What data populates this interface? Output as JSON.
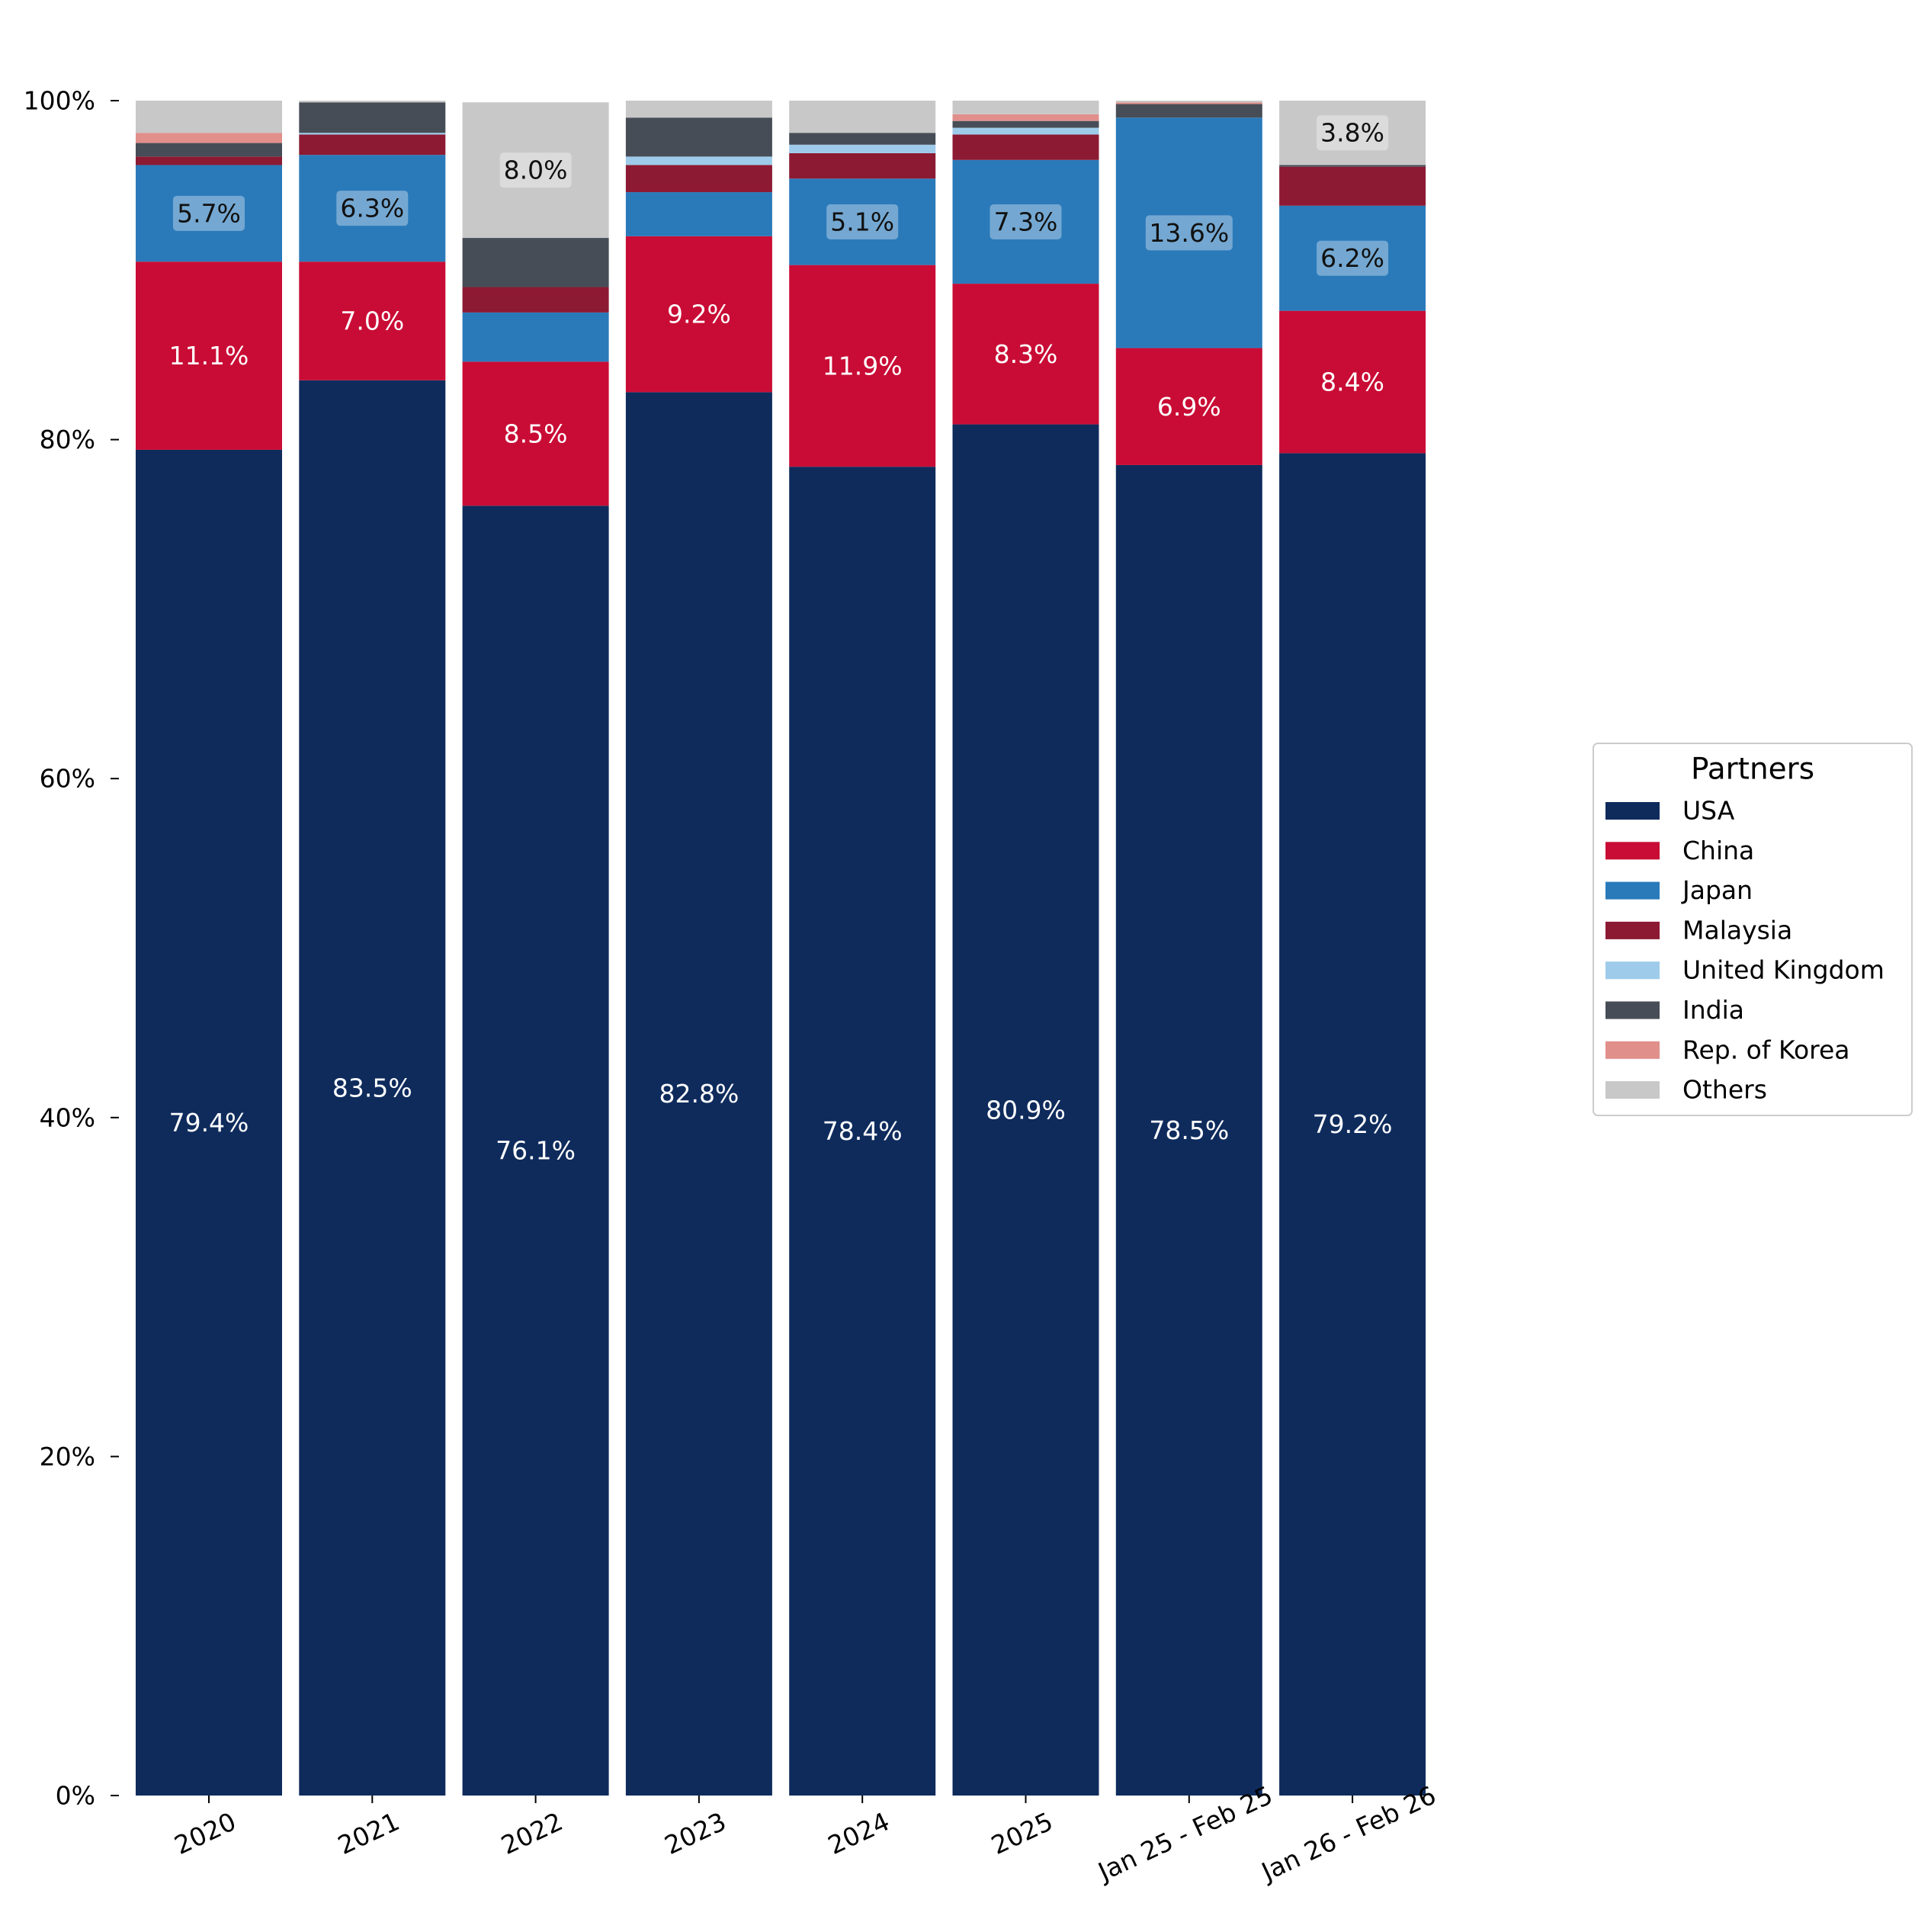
{
  "chart_data": {
    "type": "bar",
    "stacked": true,
    "categories": [
      "2020",
      "2021",
      "2022",
      "2023",
      "2024",
      "2025",
      "Jan 25 - Feb 25",
      "Jan 26 - Feb 26"
    ],
    "series": [
      {
        "name": "USA",
        "color": "#0e2b5c",
        "values": [
          79.4,
          83.5,
          76.1,
          82.8,
          78.4,
          80.9,
          78.5,
          79.2
        ],
        "labels": [
          "79.4%",
          "83.5%",
          "76.1%",
          "82.8%",
          "78.4%",
          "80.9%",
          "78.5%",
          "79.2%"
        ]
      },
      {
        "name": "China",
        "color": "#c90c35",
        "values": [
          11.1,
          7.0,
          8.5,
          9.2,
          11.9,
          8.3,
          6.9,
          8.4
        ],
        "labels": [
          "11.1%",
          "7.0%",
          "8.5%",
          "9.2%",
          "11.9%",
          "8.3%",
          "6.9%",
          "8.4%"
        ]
      },
      {
        "name": "Japan",
        "color": "#2a7aba",
        "values": [
          5.7,
          6.3,
          2.9,
          2.6,
          5.1,
          7.3,
          13.6,
          6.2
        ],
        "labels": [
          "5.7%",
          "6.3%",
          "",
          "",
          "5.1%",
          "7.3%",
          "13.6%",
          "6.2%"
        ]
      },
      {
        "name": "Malaysia",
        "color": "#8c1a33",
        "values": [
          0.5,
          1.2,
          1.5,
          1.6,
          1.5,
          1.5,
          0.0,
          2.3
        ],
        "labels": [
          "",
          "",
          "",
          "",
          "",
          "",
          "",
          ""
        ]
      },
      {
        "name": "United Kingdom",
        "color": "#9ecbea",
        "values": [
          0.0,
          0.1,
          0.0,
          0.5,
          0.5,
          0.4,
          0.0,
          0.0
        ],
        "labels": [
          "",
          "",
          "",
          "",
          "",
          "",
          "",
          ""
        ]
      },
      {
        "name": "India",
        "color": "#474d56",
        "values": [
          0.8,
          1.8,
          2.9,
          2.3,
          0.7,
          0.4,
          0.8,
          0.1
        ],
        "labels": [
          "",
          "",
          "",
          "",
          "",
          "",
          "",
          ""
        ]
      },
      {
        "name": "Rep. of Korea",
        "color": "#e08f8b",
        "values": [
          0.6,
          0.0,
          0.0,
          0.0,
          0.0,
          0.4,
          0.1,
          0.0
        ],
        "labels": [
          "",
          "",
          "",
          "",
          "",
          "",
          "",
          ""
        ]
      },
      {
        "name": "Others",
        "color": "#c8c8c8",
        "values": [
          1.9,
          0.1,
          8.0,
          1.0,
          1.9,
          0.8,
          0.1,
          3.8
        ],
        "labels": [
          "",
          "",
          "8.0%",
          "",
          "",
          "",
          "",
          "3.8%"
        ]
      }
    ],
    "yticks": [
      "0%",
      "20%",
      "40%",
      "60%",
      "80%",
      "100%"
    ],
    "ylim": [
      0,
      100
    ],
    "legend": {
      "title": "Partners",
      "placement": "right"
    }
  }
}
